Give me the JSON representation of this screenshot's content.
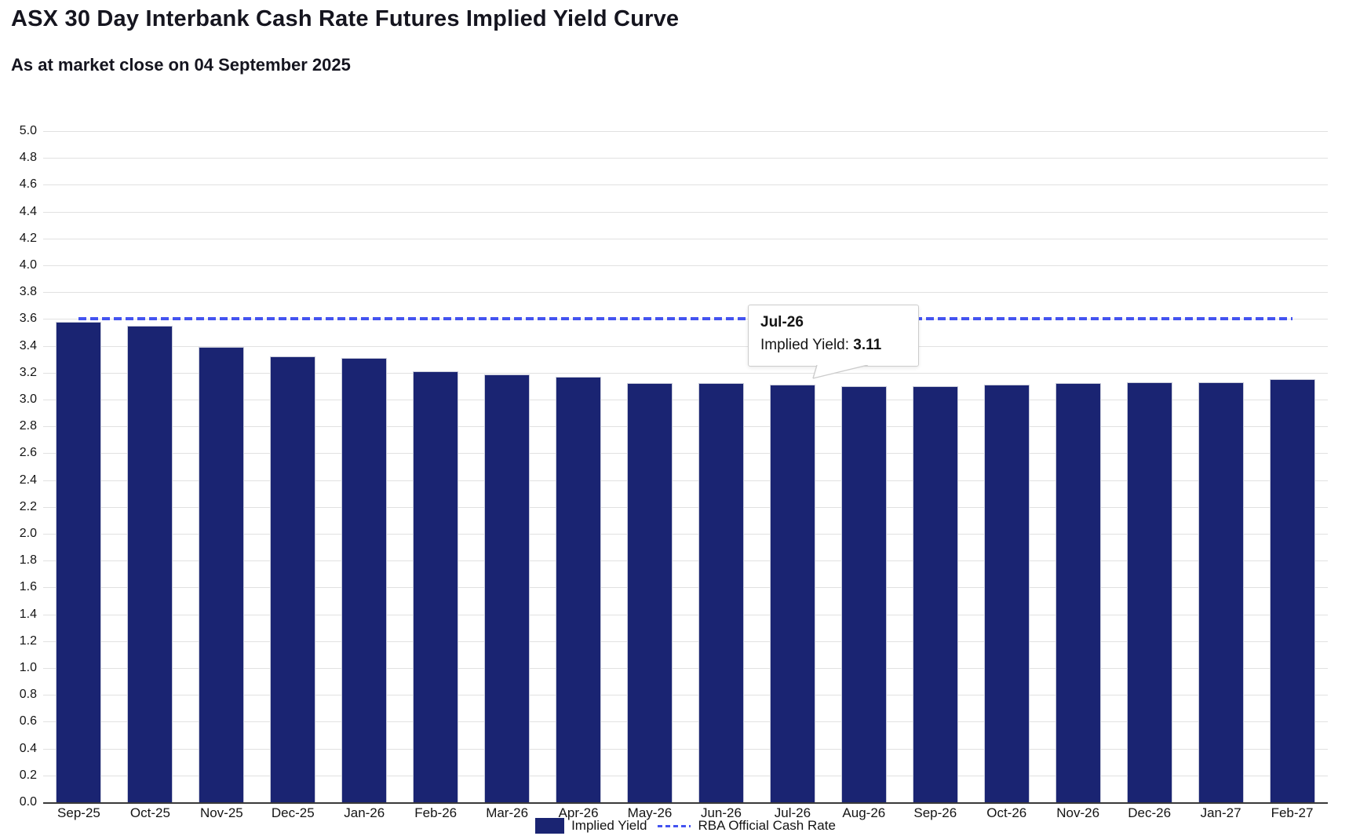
{
  "header": {
    "title": "ASX 30 Day Interbank Cash Rate Futures Implied Yield Curve",
    "subtitle": "As at market close on 04 September 2025"
  },
  "chart_data": {
    "type": "bar",
    "categories": [
      "Sep-25",
      "Oct-25",
      "Nov-25",
      "Dec-25",
      "Jan-26",
      "Feb-26",
      "Mar-26",
      "Apr-26",
      "May-26",
      "Jun-26",
      "Jul-26",
      "Aug-26",
      "Sep-26",
      "Oct-26",
      "Nov-26",
      "Dec-26",
      "Jan-27",
      "Feb-27"
    ],
    "series": [
      {
        "name": "Implied Yield",
        "type": "bar",
        "values": [
          3.58,
          3.55,
          3.39,
          3.32,
          3.31,
          3.21,
          3.19,
          3.17,
          3.12,
          3.12,
          3.11,
          3.1,
          3.1,
          3.11,
          3.12,
          3.13,
          3.13,
          3.15
        ]
      },
      {
        "name": "RBA Official Cash Rate",
        "type": "line",
        "value": 3.6
      }
    ],
    "ylim": [
      0.0,
      5.0
    ],
    "ytick_step": 0.2,
    "grid": true,
    "legend_position": "bottom"
  },
  "tooltip": {
    "title": "Jul-26",
    "label": "Implied Yield: ",
    "value": "3.11",
    "target_category": "Jul-26"
  },
  "colors": {
    "bar": "#1a2472",
    "rba_line": "#4353f0",
    "grid": "#e1e1e1",
    "axis_base": "#3a3a3a",
    "tooltip_border": "#cccccc"
  }
}
